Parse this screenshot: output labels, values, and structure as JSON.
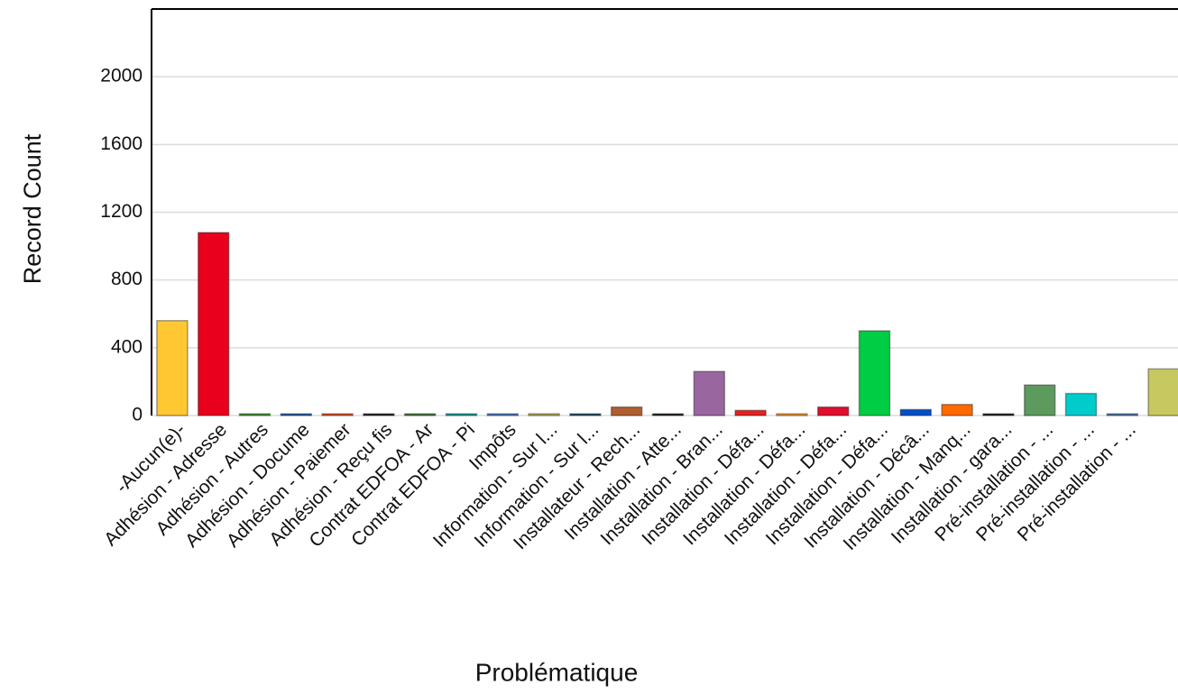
{
  "chart_data": {
    "type": "bar",
    "x_label": "Problématique",
    "y_label": "Record Count",
    "categories": [
      "-Aucun(e)-",
      "Adhésion - Adresse",
      "Adhésion - Autres",
      "Adhésion - Docume",
      "Adhésion - Paiemer",
      "Adhésion - Reçu fis",
      "Contrat EDFOA - Ar",
      "Contrat EDFOA - Pi",
      "Impôts",
      "Information - Sur l...",
      "Information - Sur l...",
      "Installateur - Rech...",
      "Installation - Atte...",
      "Installation - Bran...",
      "Installation - Défa...",
      "Installation - Défa...",
      "Installation - Défa...",
      "Installation - Défa...",
      "Installation - Décâ...",
      "Installation - Manq...",
      "Installation - gara...",
      "Pré-installation - ...",
      "Pré-installation - ...",
      "Pré-installation - ...",
      null
    ],
    "values": [
      560,
      1080,
      10,
      10,
      10,
      10,
      10,
      10,
      10,
      10,
      10,
      50,
      10,
      260,
      30,
      10,
      50,
      500,
      35,
      65,
      10,
      180,
      130,
      10,
      275
    ],
    "colors": [
      "#ffc833",
      "#e8001c",
      "#3f9a2c",
      "#1f5ea8",
      "#f04e23",
      "#222222",
      "#4a7a3a",
      "#1aa3a3",
      "#4a7cc8",
      "#b8b860",
      "#1f5060",
      "#b06030",
      "#222222",
      "#9966a0",
      "#e82020",
      "#ffa030",
      "#e0102c",
      "#00cc44",
      "#0050c8",
      "#ff6a00",
      "#222222",
      "#5d9a5d",
      "#00cccc",
      "#5078b8",
      "#c8c860"
    ],
    "ylim": [
      0,
      2400
    ],
    "yticks": [
      0,
      400,
      800,
      1200,
      1600,
      2000
    ],
    "grid": true
  }
}
